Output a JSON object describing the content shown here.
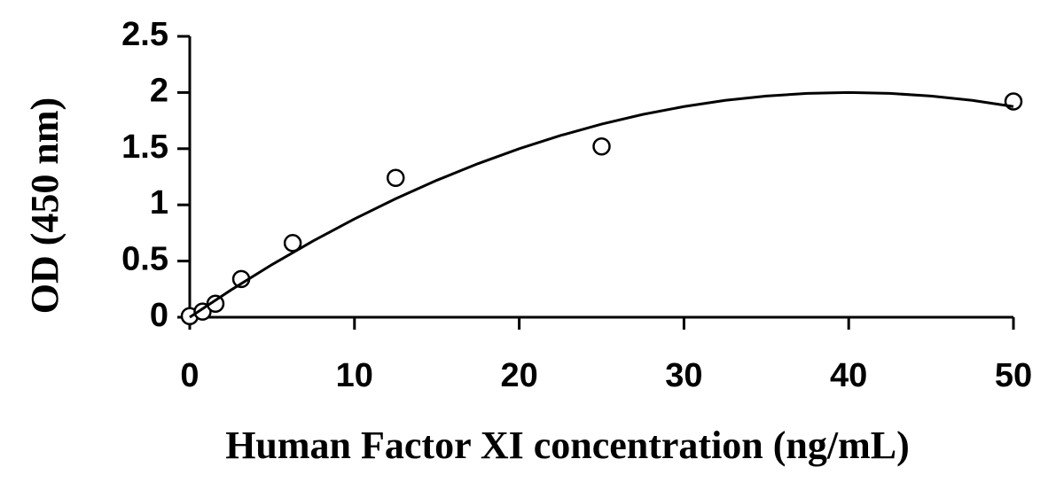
{
  "chart_data": {
    "type": "scatter",
    "x_label": "Human Factor XI concentration (ng/mL)",
    "y_label": "OD (450 nm)",
    "xlim": [
      0,
      50
    ],
    "xticks": [
      0,
      10,
      20,
      30,
      40,
      50
    ],
    "ylim": [
      0,
      2.5
    ],
    "yticks": [
      0,
      0.5,
      1,
      1.5,
      2,
      2.5
    ],
    "grid": false,
    "series": [
      {
        "color": "#000000",
        "marker": "circle",
        "x": [
          0,
          0.78,
          1.56,
          3.125,
          6.25,
          12.5,
          25,
          50
        ],
        "values": [
          0.01,
          0.05,
          0.12,
          0.34,
          0.66,
          1.24,
          1.52,
          1.92
        ]
      },
      {
        "color": "#000000",
        "marker": "line",
        "x": [
          0,
          2.5,
          5,
          7.5,
          10,
          12.5,
          15,
          17.5,
          20,
          22.5,
          25,
          27.5,
          30,
          32.5,
          35,
          37.5,
          40,
          42.5,
          45,
          47.5,
          50
        ],
        "values": [
          0,
          0.242,
          0.469,
          0.68,
          0.875,
          1.055,
          1.219,
          1.367,
          1.5,
          1.617,
          1.719,
          1.805,
          1.875,
          1.93,
          1.969,
          1.992,
          2.0,
          1.992,
          1.969,
          1.93,
          1.875
        ]
      }
    ]
  }
}
